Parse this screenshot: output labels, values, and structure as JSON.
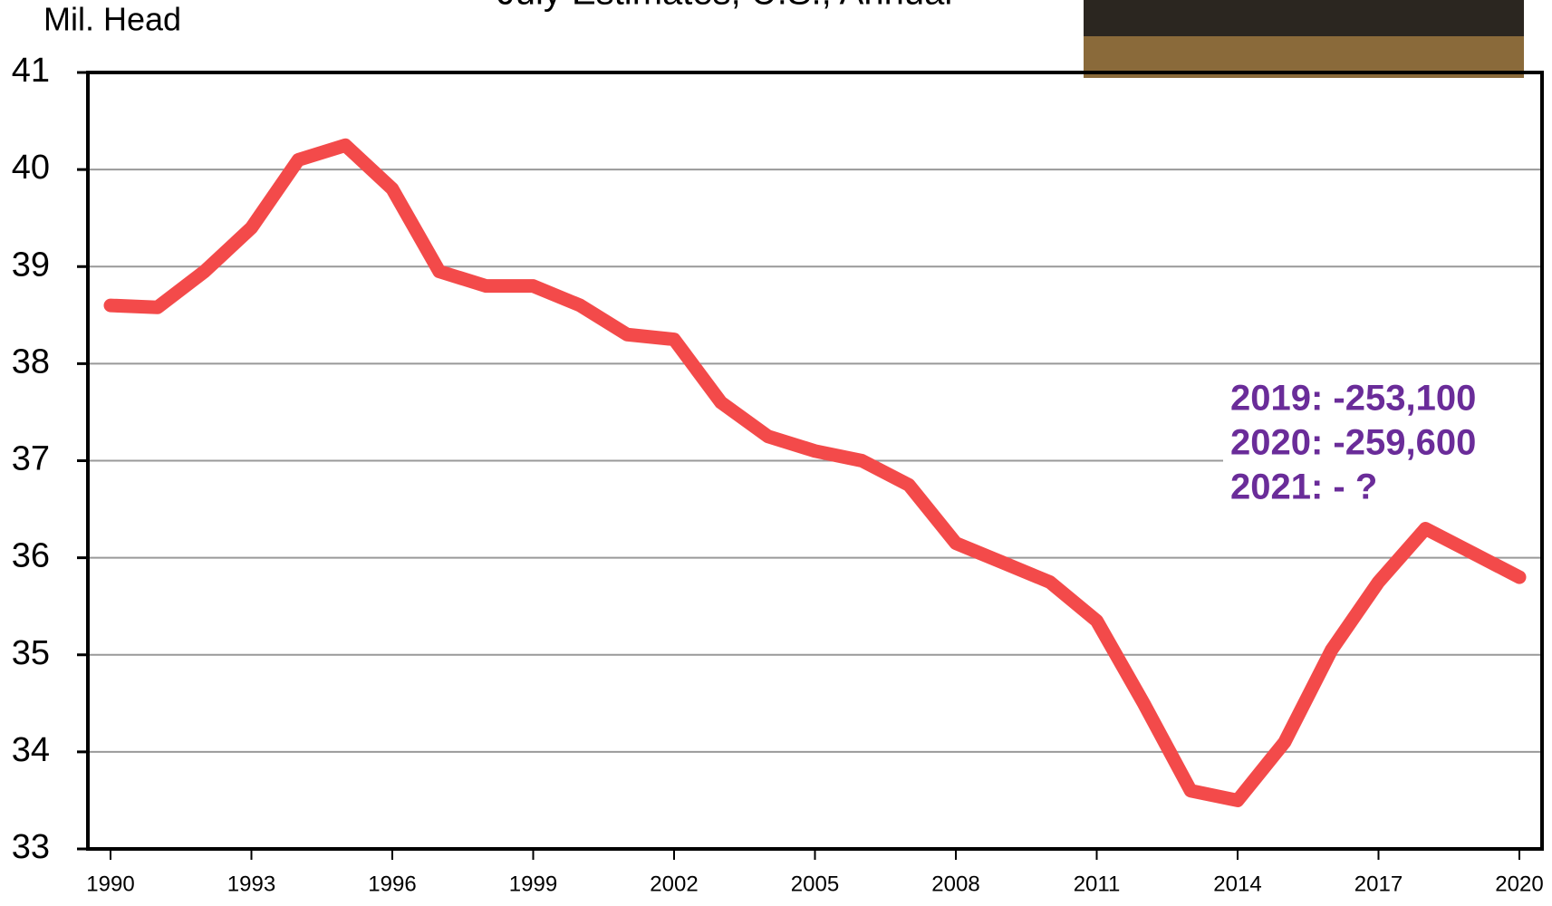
{
  "chart_data": {
    "type": "line",
    "title": "July Estimates, U.S., Annual",
    "y_label": "Mil. Head",
    "x": [
      1990,
      1991,
      1992,
      1993,
      1994,
      1995,
      1996,
      1997,
      1998,
      1999,
      2000,
      2001,
      2002,
      2003,
      2004,
      2005,
      2006,
      2007,
      2008,
      2009,
      2010,
      2011,
      2012,
      2013,
      2014,
      2015,
      2016,
      2017,
      2018,
      2019,
      2020
    ],
    "series": [
      {
        "color": "#f34a4a",
        "values": [
          38.6,
          38.58,
          38.95,
          39.4,
          40.1,
          40.25,
          39.8,
          38.95,
          38.8,
          38.8,
          38.6,
          38.3,
          38.25,
          37.6,
          37.25,
          37.1,
          37.0,
          36.75,
          36.15,
          35.95,
          35.75,
          35.35,
          34.5,
          33.6,
          33.5,
          34.1,
          35.05,
          35.75,
          36.3,
          36.05,
          35.8
        ]
      }
    ],
    "xlim": [
      1990,
      2020
    ],
    "xticks": [
      1990,
      1993,
      1996,
      1999,
      2002,
      2005,
      2008,
      2011,
      2014,
      2017,
      2020
    ],
    "ylim": [
      33,
      41
    ],
    "yticks": [
      33,
      34,
      35,
      36,
      37,
      38,
      39,
      40,
      41
    ],
    "grid": true,
    "annotations": [
      "2019: -253,100",
      "2020: -259,600",
      "2021: - ?"
    ]
  }
}
